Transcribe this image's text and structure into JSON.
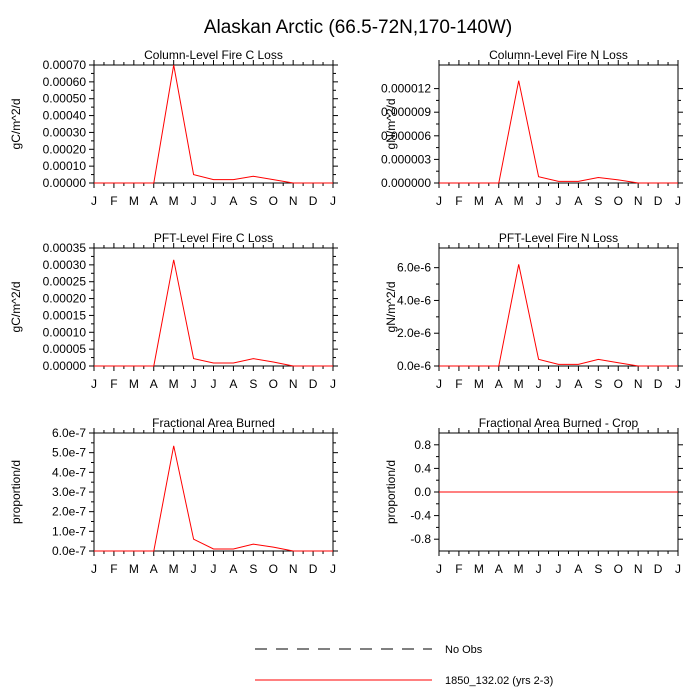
{
  "page": {
    "title": "Alaskan Arctic (66.5-72N,170-140W)"
  },
  "colors": {
    "model_series": "#ff0000",
    "obs_series": "#000000",
    "axis": "#000000"
  },
  "legend": {
    "placement": "bottom-center",
    "entries": [
      {
        "label": "No Obs",
        "style": "dashed",
        "color": "#000000"
      },
      {
        "label": "1850_132.02 (yrs 2-3)",
        "style": "solid",
        "color": "#ff0000"
      }
    ]
  },
  "chart_data": [
    {
      "type": "line",
      "title": "Column-Level Fire C Loss",
      "xlabel": "",
      "ylabel": "gC/m^2/d",
      "x": [
        "J",
        "F",
        "M",
        "A",
        "M",
        "J",
        "J",
        "A",
        "S",
        "O",
        "N",
        "D",
        "J"
      ],
      "ylim": [
        0,
        0.0007
      ],
      "yticks": [
        "0.00000",
        "0.00010",
        "0.00020",
        "0.00030",
        "0.00040",
        "0.00050",
        "0.00060",
        "0.00070"
      ],
      "ytick_values": [
        0,
        0.0001,
        0.0002,
        0.0003,
        0.0004,
        0.0005,
        0.0006,
        0.0007
      ],
      "series": [
        {
          "name": "1850_132.02 (yrs 2-3)",
          "values": [
            0,
            0,
            0,
            0,
            0.0007,
            5e-05,
            2e-05,
            2e-05,
            4e-05,
            2e-05,
            0,
            0,
            0
          ]
        }
      ]
    },
    {
      "type": "line",
      "title": "Column-Level Fire N Loss",
      "xlabel": "",
      "ylabel": "gN/m^2/d",
      "x": [
        "J",
        "F",
        "M",
        "A",
        "M",
        "J",
        "J",
        "A",
        "S",
        "O",
        "N",
        "D",
        "J"
      ],
      "ylim": [
        0,
        1.5e-05
      ],
      "yticks": [
        "0.000000",
        "0.000003",
        "0.000006",
        "0.000009",
        "0.000012"
      ],
      "ytick_values": [
        0,
        3e-06,
        6e-06,
        9e-06,
        1.2e-05
      ],
      "series": [
        {
          "name": "1850_132.02 (yrs 2-3)",
          "values": [
            0,
            0,
            0,
            0,
            1.3e-05,
            8e-07,
            2e-07,
            2e-07,
            7e-07,
            4e-07,
            0,
            0,
            0
          ]
        }
      ]
    },
    {
      "type": "line",
      "title": "PFT-Level Fire C Loss",
      "xlabel": "",
      "ylabel": "gC/m^2/d",
      "x": [
        "J",
        "F",
        "M",
        "A",
        "M",
        "J",
        "J",
        "A",
        "S",
        "O",
        "N",
        "D",
        "J"
      ],
      "ylim": [
        0,
        0.00035
      ],
      "yticks": [
        "0.00000",
        "0.00005",
        "0.00010",
        "0.00015",
        "0.00020",
        "0.00025",
        "0.00030",
        "0.00035"
      ],
      "ytick_values": [
        0,
        5e-05,
        0.0001,
        0.00015,
        0.0002,
        0.00025,
        0.0003,
        0.00035
      ],
      "series": [
        {
          "name": "1850_132.02 (yrs 2-3)",
          "values": [
            0,
            0,
            0,
            0,
            0.000315,
            2.2e-05,
            9e-06,
            9e-06,
            2.2e-05,
            1.2e-05,
            0,
            0,
            0
          ]
        }
      ]
    },
    {
      "type": "line",
      "title": "PFT-Level Fire N Loss",
      "xlabel": "",
      "ylabel": "gN/m^2/d",
      "x": [
        "J",
        "F",
        "M",
        "A",
        "M",
        "J",
        "J",
        "A",
        "S",
        "O",
        "N",
        "D",
        "J"
      ],
      "ylim": [
        0,
        7.2e-06
      ],
      "yticks": [
        "0.0e-6",
        "2.0e-6",
        "4.0e-6",
        "6.0e-6"
      ],
      "ytick_values": [
        0,
        2e-06,
        4e-06,
        6e-06
      ],
      "series": [
        {
          "name": "1850_132.02 (yrs 2-3)",
          "values": [
            0,
            0,
            0,
            0,
            6.2e-06,
            4e-07,
            1e-07,
            1e-07,
            4e-07,
            2e-07,
            0,
            0,
            0
          ]
        }
      ]
    },
    {
      "type": "line",
      "title": "Fractional Area Burned",
      "xlabel": "",
      "ylabel": "proportion/d",
      "x": [
        "J",
        "F",
        "M",
        "A",
        "M",
        "J",
        "J",
        "A",
        "S",
        "O",
        "N",
        "D",
        "J"
      ],
      "ylim": [
        0,
        6e-07
      ],
      "yticks": [
        "0.0e-7",
        "1.0e-7",
        "2.0e-7",
        "3.0e-7",
        "4.0e-7",
        "5.0e-7",
        "6.0e-7"
      ],
      "ytick_values": [
        0,
        1e-07,
        2e-07,
        3e-07,
        4e-07,
        5e-07,
        6e-07
      ],
      "series": [
        {
          "name": "1850_132.02 (yrs 2-3)",
          "values": [
            0,
            0,
            0,
            0,
            5.35e-07,
            6e-08,
            1e-08,
            1e-08,
            3.5e-08,
            2e-08,
            0,
            0,
            0
          ]
        }
      ]
    },
    {
      "type": "line",
      "title": "Fractional Area Burned - Crop",
      "xlabel": "",
      "ylabel": "proportion/d",
      "x": [
        "J",
        "F",
        "M",
        "A",
        "M",
        "J",
        "J",
        "A",
        "S",
        "O",
        "N",
        "D",
        "J"
      ],
      "ylim": [
        -1,
        1
      ],
      "yticks": [
        "-0.8",
        "-0.4",
        "0.0",
        "0.4",
        "0.8"
      ],
      "ytick_values": [
        -0.8,
        -0.4,
        0,
        0.4,
        0.8
      ],
      "series": [
        {
          "name": "1850_132.02 (yrs 2-3)",
          "values": [
            0,
            0,
            0,
            0,
            0,
            0,
            0,
            0,
            0,
            0,
            0,
            0,
            0
          ]
        }
      ]
    }
  ]
}
